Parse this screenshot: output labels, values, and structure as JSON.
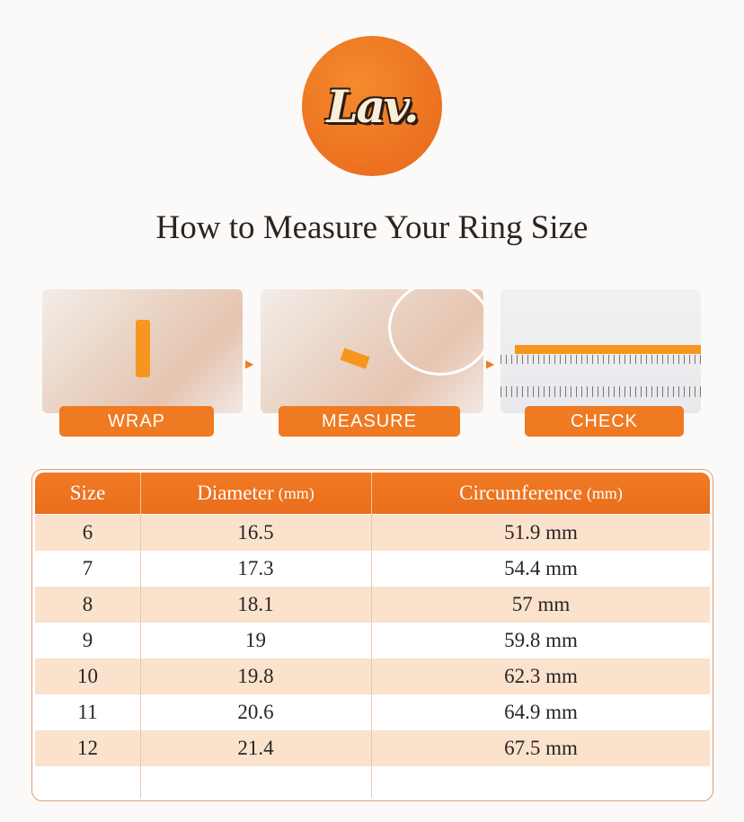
{
  "logo": {
    "text": "Lav."
  },
  "title": "How to Measure Your Ring Size",
  "steps": [
    {
      "label": "WRAP"
    },
    {
      "label": "MEASURE"
    },
    {
      "label": "CHECK"
    }
  ],
  "table": {
    "headers": {
      "size": "Size",
      "diameter": "Diameter",
      "diameter_unit": "(mm)",
      "circumference": "Circumference",
      "circumference_unit": "(mm)"
    },
    "rows": [
      {
        "size": "6",
        "diameter": "16.5",
        "circumference": "51.9 mm"
      },
      {
        "size": "7",
        "diameter": "17.3",
        "circumference": "54.4 mm"
      },
      {
        "size": "8",
        "diameter": "18.1",
        "circumference": "57 mm"
      },
      {
        "size": "9",
        "diameter": "19",
        "circumference": "59.8 mm"
      },
      {
        "size": "10",
        "diameter": "19.8",
        "circumference": "62.3 mm"
      },
      {
        "size": "11",
        "diameter": "20.6",
        "circumference": "64.9 mm"
      },
      {
        "size": "12",
        "diameter": "21.4",
        "circumference": "67.5 mm"
      }
    ]
  },
  "colors": {
    "accent": "#ef7a21",
    "row_alt": "#fae2cd"
  }
}
